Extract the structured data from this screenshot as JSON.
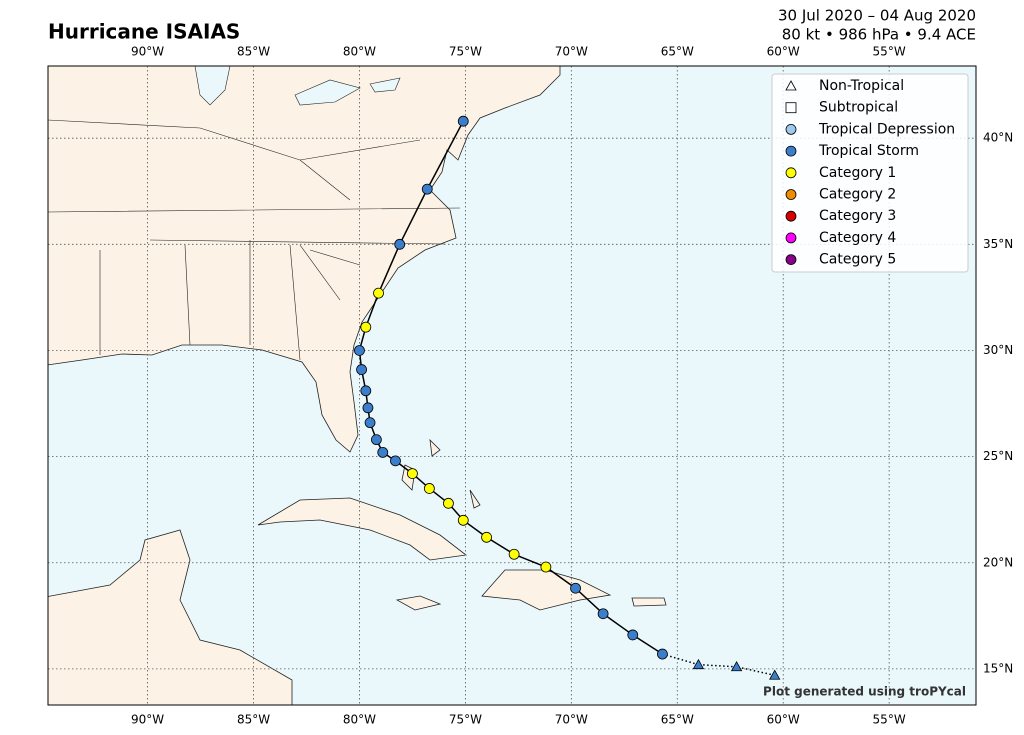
{
  "title": "Hurricane ISAIAS",
  "dates": "30 Jul 2020 – 04 Aug 2020",
  "summary": "80 kt • 986 hPa • 9.4 ACE",
  "credit": "Plot generated using troPYcal",
  "xlim": [
    -94.7,
    -50.9
  ],
  "ylim": [
    13.3,
    43.4
  ],
  "xticks": [
    {
      "value": -90,
      "label": "90°W"
    },
    {
      "value": -85,
      "label": "85°W"
    },
    {
      "value": -80,
      "label": "80°W"
    },
    {
      "value": -75,
      "label": "75°W"
    },
    {
      "value": -70,
      "label": "70°W"
    },
    {
      "value": -65,
      "label": "65°W"
    },
    {
      "value": -60,
      "label": "60°W"
    },
    {
      "value": -55,
      "label": "55°W"
    }
  ],
  "yticks": [
    {
      "value": 15,
      "label": "15°N"
    },
    {
      "value": 20,
      "label": "20°N"
    },
    {
      "value": 25,
      "label": "25°N"
    },
    {
      "value": 30,
      "label": "30°N"
    },
    {
      "value": 35,
      "label": "35°N"
    },
    {
      "value": 40,
      "label": "40°N"
    }
  ],
  "legend": [
    {
      "label": "Non-Tropical",
      "shape": "triangle",
      "color": "none"
    },
    {
      "label": "Subtropical",
      "shape": "square",
      "color": "none"
    },
    {
      "label": "Tropical Depression",
      "shape": "circle",
      "color": "#9dc9ee"
    },
    {
      "label": "Tropical Storm",
      "shape": "circle",
      "color": "#3b7fcc"
    },
    {
      "label": "Category 1",
      "shape": "circle",
      "color": "#ffff00"
    },
    {
      "label": "Category 2",
      "shape": "circle",
      "color": "#f08c00"
    },
    {
      "label": "Category 3",
      "shape": "circle",
      "color": "#d60000"
    },
    {
      "label": "Category 4",
      "shape": "circle",
      "color": "#ff00ff"
    },
    {
      "label": "Category 5",
      "shape": "circle",
      "color": "#880088"
    }
  ],
  "track": {
    "lon": [
      -60.4,
      -62.2,
      -64.0,
      -65.7,
      -67.1,
      -68.5,
      -69.8,
      -71.2,
      -72.7,
      -74.0,
      -75.1,
      -75.8,
      -76.7,
      -77.5,
      -78.3,
      -78.9,
      -79.2,
      -79.5,
      -79.6,
      -79.7,
      -79.9,
      -80.0,
      -79.7,
      -79.1,
      -78.1,
      -76.8,
      -75.1
    ],
    "lat": [
      14.7,
      15.1,
      15.2,
      15.7,
      16.6,
      17.6,
      18.8,
      19.8,
      20.4,
      21.2,
      22.0,
      22.8,
      23.5,
      24.2,
      24.8,
      25.2,
      25.8,
      26.6,
      27.3,
      28.1,
      29.1,
      30.0,
      31.1,
      32.7,
      35.0,
      37.6,
      40.8
    ],
    "type": [
      "Non-Tropical",
      "Non-Tropical",
      "Non-Tropical",
      "Tropical Storm",
      "Tropical Storm",
      "Tropical Storm",
      "Tropical Storm",
      "Category 1",
      "Category 1",
      "Category 1",
      "Category 1",
      "Category 1",
      "Category 1",
      "Category 1",
      "Tropical Storm",
      "Tropical Storm",
      "Tropical Storm",
      "Tropical Storm",
      "Tropical Storm",
      "Tropical Storm",
      "Tropical Storm",
      "Tropical Storm",
      "Category 1",
      "Category 1",
      "Tropical Storm",
      "Tropical Storm",
      "Tropical Storm"
    ]
  }
}
